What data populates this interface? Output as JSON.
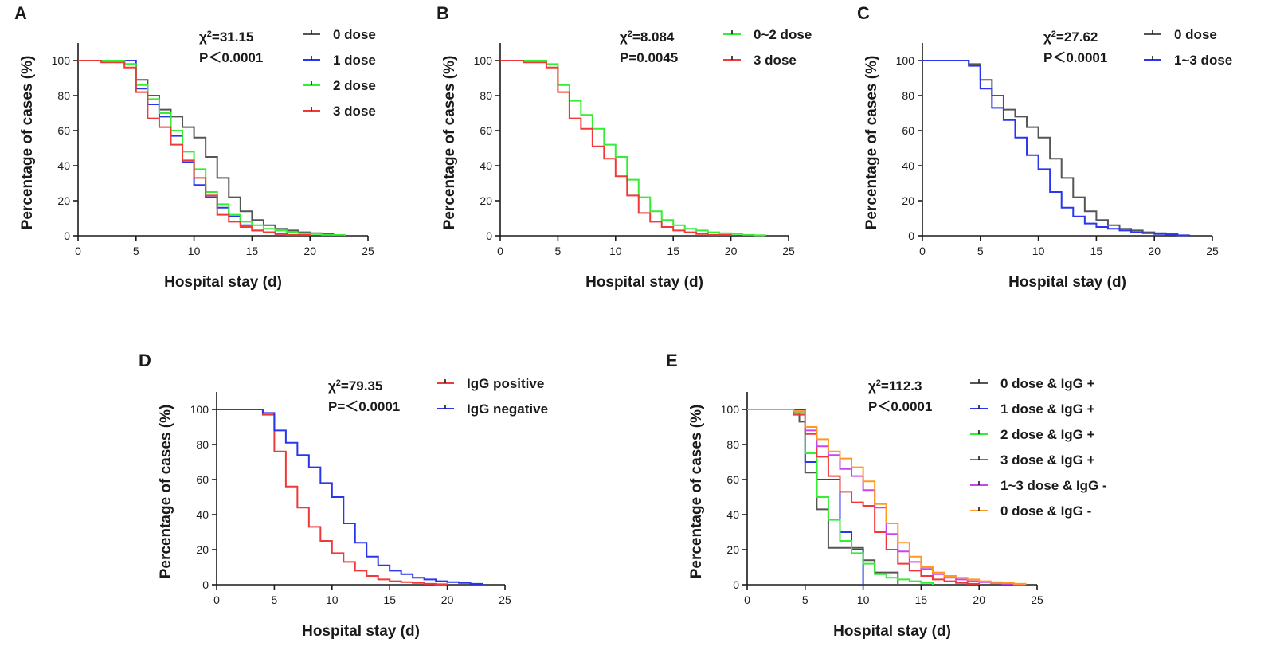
{
  "chart_data": [
    {
      "type": "line",
      "panel": "A",
      "xlabel": "Hospital stay (d)",
      "ylabel": "Percentage of cases (%)",
      "xlim": [
        0,
        25
      ],
      "ylim": [
        0,
        110
      ],
      "xticks": [
        0,
        5,
        10,
        15,
        20,
        25
      ],
      "yticks": [
        0,
        20,
        40,
        60,
        80,
        100
      ],
      "stat_line1": "χ²=31.15",
      "stat_line2": "P＜0.0001",
      "legend_position": "top-right",
      "series": [
        {
          "name": "0 dose",
          "color": "#555555",
          "x": [
            0,
            2,
            4,
            5,
            6,
            7,
            8,
            9,
            10,
            11,
            12,
            13,
            14,
            15,
            16,
            17,
            18,
            19,
            20,
            21,
            22
          ],
          "y": [
            100,
            100,
            98,
            89,
            80,
            72,
            68,
            62,
            56,
            45,
            33,
            22,
            14,
            9,
            6,
            4,
            3,
            2,
            1.5,
            1,
            0
          ]
        },
        {
          "name": "1 dose",
          "color": "#2a36ee",
          "x": [
            0,
            2,
            4,
            5,
            6,
            7,
            8,
            9,
            10,
            11,
            12,
            13,
            14,
            15,
            16,
            17,
            18
          ],
          "y": [
            100,
            100,
            100,
            84,
            75,
            68,
            57,
            42,
            29,
            22,
            16,
            11,
            6,
            3,
            2,
            1,
            0
          ]
        },
        {
          "name": "2 dose",
          "color": "#33ee33",
          "x": [
            0,
            2,
            4,
            5,
            6,
            7,
            8,
            9,
            10,
            11,
            12,
            13,
            14,
            15,
            16,
            17,
            18,
            19,
            20,
            21,
            23
          ],
          "y": [
            100,
            100,
            98,
            86,
            78,
            70,
            60,
            48,
            38,
            25,
            18,
            12,
            8,
            6,
            4,
            3,
            2,
            1.5,
            1,
            0.5,
            0
          ]
        },
        {
          "name": "3 dose",
          "color": "#f03a3a",
          "x": [
            0,
            2,
            4,
            5,
            6,
            7,
            8,
            9,
            10,
            11,
            12,
            13,
            14,
            15,
            16,
            17,
            18,
            20
          ],
          "y": [
            100,
            99,
            96,
            82,
            67,
            62,
            52,
            43,
            33,
            23,
            12,
            8,
            5,
            3,
            2,
            1,
            0.5,
            0
          ]
        }
      ]
    },
    {
      "type": "line",
      "panel": "B",
      "xlabel": "Hospital stay (d)",
      "ylabel": "Percentage of cases (%)",
      "xlim": [
        0,
        25
      ],
      "ylim": [
        0,
        110
      ],
      "xticks": [
        0,
        5,
        10,
        15,
        20,
        25
      ],
      "yticks": [
        0,
        20,
        40,
        60,
        80,
        100
      ],
      "stat_line1": "χ²=8.084",
      "stat_line2": "P=0.0045",
      "legend_position": "top-right",
      "series": [
        {
          "name": "0~2 dose",
          "color": "#33ee33",
          "x": [
            0,
            2,
            4,
            5,
            6,
            7,
            8,
            9,
            10,
            11,
            12,
            13,
            14,
            15,
            16,
            17,
            18,
            19,
            20,
            21,
            22,
            23
          ],
          "y": [
            100,
            100,
            98,
            86,
            77,
            69,
            61,
            52,
            45,
            32,
            22,
            14,
            9,
            6,
            4,
            3,
            2,
            1.5,
            1,
            0.5,
            0.3,
            0
          ]
        },
        {
          "name": "3 dose",
          "color": "#f03a3a",
          "x": [
            0,
            2,
            4,
            5,
            6,
            7,
            8,
            9,
            10,
            11,
            12,
            13,
            14,
            15,
            16,
            17,
            18,
            20
          ],
          "y": [
            100,
            99,
            96,
            82,
            67,
            61,
            51,
            44,
            34,
            23,
            13,
            8,
            5,
            3,
            2,
            1,
            0.5,
            0
          ]
        }
      ]
    },
    {
      "type": "line",
      "panel": "C",
      "xlabel": "Hospital stay (d)",
      "ylabel": "Percentage of cases (%)",
      "xlim": [
        0,
        25
      ],
      "ylim": [
        0,
        110
      ],
      "xticks": [
        0,
        5,
        10,
        15,
        20,
        25
      ],
      "yticks": [
        0,
        20,
        40,
        60,
        80,
        100
      ],
      "stat_line1": "χ²=27.62",
      "stat_line2": "P＜0.0001",
      "legend_position": "top-right",
      "series": [
        {
          "name": "0 dose",
          "color": "#555555",
          "x": [
            0,
            2,
            4,
            5,
            6,
            7,
            8,
            9,
            10,
            11,
            12,
            13,
            14,
            15,
            16,
            17,
            18,
            19,
            20,
            21,
            22
          ],
          "y": [
            100,
            100,
            98,
            89,
            80,
            72,
            68,
            62,
            56,
            44,
            33,
            22,
            14,
            9,
            6,
            4,
            3,
            2,
            1.5,
            1,
            0
          ]
        },
        {
          "name": "1~3 dose",
          "color": "#2a36ee",
          "x": [
            0,
            2,
            4,
            5,
            6,
            7,
            8,
            9,
            10,
            11,
            12,
            13,
            14,
            15,
            16,
            17,
            18,
            19,
            20,
            21,
            22,
            23
          ],
          "y": [
            100,
            100,
            97,
            84,
            73,
            66,
            56,
            46,
            38,
            25,
            16,
            11,
            7,
            5,
            4,
            3,
            2,
            1.5,
            1,
            0.5,
            0.3,
            0
          ]
        }
      ]
    },
    {
      "type": "line",
      "panel": "D",
      "xlabel": "Hospital stay (d)",
      "ylabel": "Percentage of cases (%)",
      "xlim": [
        0,
        25
      ],
      "ylim": [
        0,
        110
      ],
      "xticks": [
        0,
        5,
        10,
        15,
        20,
        25
      ],
      "yticks": [
        0,
        20,
        40,
        60,
        80,
        100
      ],
      "stat_line1": "χ²=79.35",
      "stat_line2": "P=＜0.0001",
      "legend_position": "top-right",
      "series": [
        {
          "name": "IgG positive",
          "color": "#f03a3a",
          "x": [
            0,
            2,
            4,
            5,
            6,
            7,
            8,
            9,
            10,
            11,
            12,
            13,
            14,
            15,
            16,
            17,
            18,
            19,
            20
          ],
          "y": [
            100,
            100,
            97,
            76,
            56,
            44,
            33,
            25,
            18,
            13,
            8,
            5,
            3,
            2,
            1.5,
            1,
            0.5,
            0.3,
            0
          ]
        },
        {
          "name": "IgG negative",
          "color": "#2a36ee",
          "x": [
            0,
            2,
            4,
            5,
            6,
            7,
            8,
            9,
            10,
            11,
            12,
            13,
            14,
            15,
            16,
            17,
            18,
            19,
            20,
            21,
            22,
            23
          ],
          "y": [
            100,
            100,
            98,
            88,
            81,
            74,
            67,
            58,
            50,
            35,
            24,
            16,
            11,
            8,
            6,
            4,
            3,
            2,
            1.5,
            1,
            0.5,
            0
          ]
        }
      ]
    },
    {
      "type": "line",
      "panel": "E",
      "xlabel": "Hospital stay (d)",
      "ylabel": "Percentage of cases (%)",
      "xlim": [
        0,
        25
      ],
      "ylim": [
        0,
        110
      ],
      "xticks": [
        0,
        5,
        10,
        15,
        20,
        25
      ],
      "yticks": [
        0,
        20,
        40,
        60,
        80,
        100
      ],
      "stat_line1": "χ²=112.3",
      "stat_line2": "P＜0.0001",
      "legend_position": "top-right",
      "series": [
        {
          "name": "0 dose & IgG +",
          "color": "#555555",
          "x": [
            0,
            2,
            4,
            4.5,
            5,
            6,
            7,
            8,
            9,
            10,
            11,
            12,
            13
          ],
          "y": [
            100,
            100,
            98,
            93,
            64,
            43,
            21,
            21,
            21,
            14,
            7,
            7,
            0
          ]
        },
        {
          "name": "1 dose & IgG +",
          "color": "#2a36ee",
          "x": [
            0,
            2,
            4,
            5,
            6,
            7,
            8,
            9,
            10
          ],
          "y": [
            100,
            100,
            100,
            70,
            60,
            60,
            30,
            20,
            0
          ]
        },
        {
          "name": "2 dose & IgG +",
          "color": "#33ee33",
          "x": [
            0,
            2,
            4,
            5,
            6,
            7,
            8,
            9,
            10,
            11,
            12,
            13,
            14,
            15,
            16
          ],
          "y": [
            100,
            100,
            98,
            75,
            50,
            37,
            25,
            18,
            12,
            6,
            4,
            3,
            2,
            1,
            0
          ]
        },
        {
          "name": "3 dose & IgG +",
          "color": "#f03a3a",
          "x": [
            0,
            2,
            4,
            5,
            6,
            7,
            8,
            9,
            10,
            11,
            12,
            13,
            14,
            15,
            16,
            17,
            18,
            19,
            20
          ],
          "y": [
            100,
            100,
            97,
            86,
            73,
            62,
            53,
            47,
            45,
            30,
            20,
            12,
            8,
            5,
            3,
            2,
            1,
            0.5,
            0
          ]
        },
        {
          "name": "1~3 dose & IgG -",
          "color": "#cc44ee",
          "x": [
            0,
            2,
            4,
            5,
            6,
            7,
            8,
            9,
            10,
            11,
            12,
            13,
            14,
            15,
            16,
            17,
            18,
            19,
            20,
            21,
            22,
            23,
            24
          ],
          "y": [
            100,
            100,
            99,
            88,
            79,
            74,
            66,
            62,
            54,
            44,
            29,
            19,
            13,
            9,
            6,
            4,
            3,
            2,
            1.5,
            1,
            0.5,
            0.3,
            0
          ]
        },
        {
          "name": "0 dose & IgG -",
          "color": "#ff9922",
          "x": [
            0,
            2,
            4,
            5,
            6,
            7,
            8,
            9,
            10,
            11,
            12,
            13,
            14,
            15,
            16,
            17,
            18,
            19,
            20,
            21,
            22,
            23,
            24
          ],
          "y": [
            100,
            100,
            99,
            90,
            83,
            76,
            72,
            67,
            59,
            46,
            35,
            24,
            16,
            10,
            7,
            5,
            4,
            3,
            2,
            1.5,
            1,
            0.5,
            0
          ]
        }
      ]
    }
  ]
}
